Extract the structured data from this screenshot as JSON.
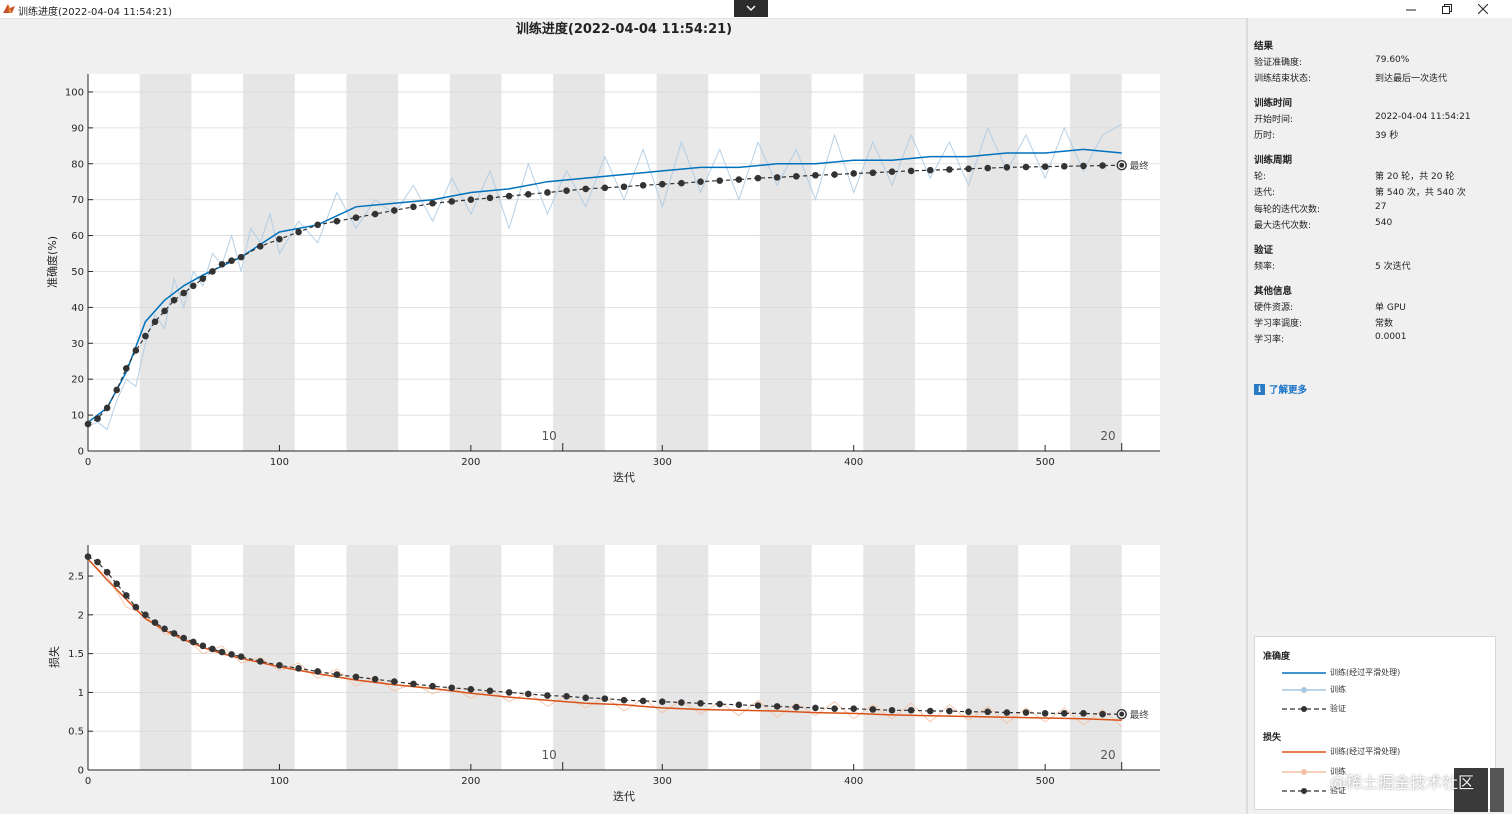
{
  "window": {
    "title": "训练进度(2022-04-04 11:54:21)",
    "controls": [
      "minimize-icon",
      "restore-icon",
      "close-icon"
    ]
  },
  "plot_title": "训练进度(2022-04-04 11:54:21)",
  "chart_data": [
    {
      "type": "line",
      "name": "accuracy",
      "xlabel": "迭代",
      "ylabel": "准确度(%)",
      "xlim": [
        0,
        560
      ],
      "ylim": [
        0,
        105
      ],
      "xticks": [
        0,
        100,
        200,
        300,
        400,
        500
      ],
      "yticks": [
        0,
        10,
        20,
        30,
        40,
        50,
        60,
        70,
        80,
        90,
        100
      ],
      "epoch_iterations": 27,
      "epoch_labels": [
        {
          "epoch": "10",
          "x": 248
        },
        {
          "epoch": "20",
          "x": 540
        }
      ],
      "grid": true,
      "final_label": "最终",
      "final": {
        "x": 540,
        "y": 79.6
      },
      "series": [
        {
          "name": "训练(经过平滑处理)",
          "color": "#0072bd",
          "x": [
            0,
            10,
            20,
            30,
            40,
            50,
            60,
            80,
            100,
            120,
            140,
            160,
            180,
            200,
            220,
            240,
            260,
            280,
            300,
            320,
            340,
            360,
            380,
            400,
            420,
            440,
            460,
            480,
            500,
            520,
            540
          ],
          "y": [
            8,
            12,
            22,
            36,
            42,
            46,
            49,
            54,
            61,
            63,
            68,
            69,
            70,
            72,
            73,
            75,
            76,
            77,
            78,
            79,
            79,
            80,
            80,
            81,
            81,
            82,
            82,
            83,
            83,
            84,
            83
          ]
        },
        {
          "name": "训练",
          "color": "#a9c9e3",
          "x": [
            0,
            5,
            10,
            15,
            20,
            25,
            30,
            35,
            40,
            45,
            50,
            55,
            60,
            65,
            70,
            75,
            80,
            85,
            90,
            95,
            100,
            110,
            120,
            130,
            140,
            150,
            160,
            170,
            180,
            190,
            200,
            210,
            220,
            230,
            240,
            250,
            260,
            270,
            280,
            290,
            300,
            310,
            320,
            330,
            340,
            350,
            360,
            370,
            380,
            390,
            400,
            410,
            420,
            430,
            440,
            450,
            460,
            470,
            480,
            490,
            500,
            510,
            520,
            530,
            540
          ],
          "y": [
            7,
            8,
            6,
            14,
            20,
            18,
            30,
            38,
            34,
            48,
            40,
            50,
            46,
            55,
            52,
            60,
            50,
            62,
            58,
            66,
            55,
            64,
            58,
            72,
            62,
            70,
            66,
            74,
            64,
            76,
            66,
            78,
            62,
            80,
            66,
            78,
            68,
            82,
            70,
            84,
            68,
            86,
            72,
            84,
            70,
            86,
            74,
            84,
            70,
            88,
            72,
            86,
            74,
            88,
            76,
            86,
            74,
            90,
            78,
            88,
            76,
            90,
            78,
            88,
            91
          ]
        },
        {
          "name": "验证",
          "color": "#333333",
          "x": [
            0,
            5,
            10,
            15,
            20,
            25,
            30,
            35,
            40,
            45,
            50,
            55,
            60,
            65,
            70,
            75,
            80,
            90,
            100,
            110,
            120,
            130,
            140,
            150,
            160,
            170,
            180,
            190,
            200,
            210,
            220,
            230,
            240,
            250,
            260,
            270,
            280,
            290,
            300,
            310,
            320,
            330,
            340,
            350,
            360,
            370,
            380,
            390,
            400,
            410,
            420,
            430,
            440,
            450,
            460,
            470,
            480,
            490,
            500,
            510,
            520,
            530,
            540
          ],
          "y": [
            7.5,
            9,
            12,
            17,
            23,
            28,
            32,
            36,
            39,
            42,
            44,
            46,
            48,
            50,
            52,
            53,
            54,
            57,
            59,
            61,
            63,
            64,
            65,
            66,
            67,
            68,
            69,
            69.5,
            70,
            70.5,
            71,
            71.5,
            72,
            72.5,
            73,
            73.3,
            73.6,
            74,
            74.3,
            74.6,
            75,
            75.3,
            75.6,
            76,
            76.2,
            76.5,
            76.8,
            77,
            77.3,
            77.5,
            77.8,
            78,
            78.2,
            78.4,
            78.6,
            78.8,
            79,
            79.1,
            79.2,
            79.3,
            79.4,
            79.5,
            79.6
          ]
        }
      ]
    },
    {
      "type": "line",
      "name": "loss",
      "xlabel": "迭代",
      "ylabel": "损失",
      "xlim": [
        0,
        560
      ],
      "ylim": [
        0,
        2.9
      ],
      "xticks": [
        0,
        100,
        200,
        300,
        400,
        500
      ],
      "yticks": [
        0,
        0.5,
        1,
        1.5,
        2,
        2.5
      ],
      "epoch_iterations": 27,
      "epoch_labels": [
        {
          "epoch": "10",
          "x": 248
        },
        {
          "epoch": "20",
          "x": 540
        }
      ],
      "grid": true,
      "final_label": "最终",
      "final": {
        "x": 540,
        "y": 0.72
      },
      "series": [
        {
          "name": "训练(经过平滑处理)",
          "color": "#d95319",
          "x": [
            0,
            10,
            20,
            30,
            40,
            50,
            60,
            70,
            80,
            100,
            120,
            140,
            160,
            180,
            200,
            220,
            240,
            260,
            280,
            300,
            320,
            340,
            360,
            380,
            400,
            420,
            440,
            460,
            480,
            500,
            520,
            540
          ],
          "y": [
            2.72,
            2.45,
            2.2,
            1.95,
            1.8,
            1.68,
            1.58,
            1.5,
            1.44,
            1.33,
            1.24,
            1.16,
            1.1,
            1.05,
            0.99,
            0.94,
            0.9,
            0.86,
            0.84,
            0.8,
            0.78,
            0.77,
            0.76,
            0.74,
            0.73,
            0.71,
            0.7,
            0.69,
            0.68,
            0.67,
            0.66,
            0.64
          ]
        },
        {
          "name": "训练",
          "color": "#f4c0a4",
          "x": [
            0,
            10,
            20,
            30,
            40,
            50,
            60,
            70,
            80,
            90,
            100,
            110,
            120,
            130,
            140,
            150,
            160,
            170,
            180,
            190,
            200,
            210,
            220,
            230,
            240,
            250,
            260,
            270,
            280,
            290,
            300,
            310,
            320,
            330,
            340,
            350,
            360,
            370,
            380,
            390,
            400,
            410,
            420,
            430,
            440,
            450,
            460,
            470,
            480,
            490,
            500,
            510,
            520,
            530,
            540
          ],
          "y": [
            2.7,
            2.5,
            2.1,
            2.0,
            1.75,
            1.72,
            1.5,
            1.6,
            1.38,
            1.45,
            1.28,
            1.38,
            1.18,
            1.3,
            1.08,
            1.2,
            1.02,
            1.12,
            0.98,
            1.08,
            0.92,
            1.04,
            0.88,
            1.0,
            0.82,
            0.96,
            0.8,
            0.94,
            0.76,
            0.92,
            0.74,
            0.9,
            0.72,
            0.88,
            0.7,
            0.9,
            0.68,
            0.86,
            0.7,
            0.88,
            0.66,
            0.84,
            0.66,
            0.86,
            0.62,
            0.84,
            0.64,
            0.82,
            0.6,
            0.8,
            0.62,
            0.8,
            0.58,
            0.78,
            0.56
          ]
        },
        {
          "name": "验证",
          "color": "#333333",
          "x": [
            0,
            5,
            10,
            15,
            20,
            25,
            30,
            35,
            40,
            45,
            50,
            55,
            60,
            65,
            70,
            75,
            80,
            90,
            100,
            110,
            120,
            130,
            140,
            150,
            160,
            170,
            180,
            190,
            200,
            210,
            220,
            230,
            240,
            250,
            260,
            270,
            280,
            290,
            300,
            310,
            320,
            330,
            340,
            350,
            360,
            370,
            380,
            390,
            400,
            410,
            420,
            430,
            440,
            450,
            460,
            470,
            480,
            490,
            500,
            510,
            520,
            530,
            540
          ],
          "y": [
            2.75,
            2.68,
            2.55,
            2.4,
            2.25,
            2.1,
            2.0,
            1.9,
            1.82,
            1.76,
            1.7,
            1.65,
            1.6,
            1.56,
            1.52,
            1.49,
            1.46,
            1.4,
            1.35,
            1.31,
            1.27,
            1.23,
            1.2,
            1.17,
            1.14,
            1.11,
            1.08,
            1.06,
            1.04,
            1.02,
            1.0,
            0.98,
            0.96,
            0.95,
            0.93,
            0.92,
            0.9,
            0.89,
            0.88,
            0.87,
            0.86,
            0.85,
            0.84,
            0.83,
            0.82,
            0.81,
            0.8,
            0.79,
            0.79,
            0.78,
            0.77,
            0.77,
            0.76,
            0.76,
            0.75,
            0.75,
            0.74,
            0.74,
            0.73,
            0.73,
            0.73,
            0.72,
            0.72
          ]
        }
      ]
    }
  ],
  "info_panel": {
    "sections": [
      {
        "title": "结果",
        "rows": [
          {
            "label": "验证准确度:",
            "value": "79.60%"
          },
          {
            "label": "训练结束状态:",
            "value": "到达最后一次迭代"
          }
        ]
      },
      {
        "title": "训练时间",
        "rows": [
          {
            "label": "开始时间:",
            "value": "2022-04-04 11:54:21"
          },
          {
            "label": "历时:",
            "value": "39 秒"
          }
        ]
      },
      {
        "title": "训练周期",
        "rows": [
          {
            "label": "轮:",
            "value": "第 20 轮，共 20 轮"
          },
          {
            "label": "迭代:",
            "value": "第 540 次，共 540 次"
          },
          {
            "label": "每轮的迭代次数:",
            "value": "27"
          },
          {
            "label": "最大迭代次数:",
            "value": "540"
          }
        ]
      },
      {
        "title": "验证",
        "rows": [
          {
            "label": "频率:",
            "value": "5 次迭代"
          }
        ]
      },
      {
        "title": "其他信息",
        "rows": [
          {
            "label": "硬件资源:",
            "value": "单 GPU"
          },
          {
            "label": "学习率调度:",
            "value": "常数"
          },
          {
            "label": "学习率:",
            "value": "0.0001"
          }
        ]
      }
    ],
    "learn_more": "了解更多"
  },
  "legend": {
    "accuracy_title": "准确度",
    "loss_title": "损失",
    "acc_smoothed": "训练(经过平滑处理)",
    "acc_train": "训练",
    "acc_val": "验证",
    "loss_smoothed": "训练(经过平滑处理)",
    "loss_train": "训练",
    "loss_val": "验证"
  },
  "watermark": "@稀土掘金技术社区"
}
